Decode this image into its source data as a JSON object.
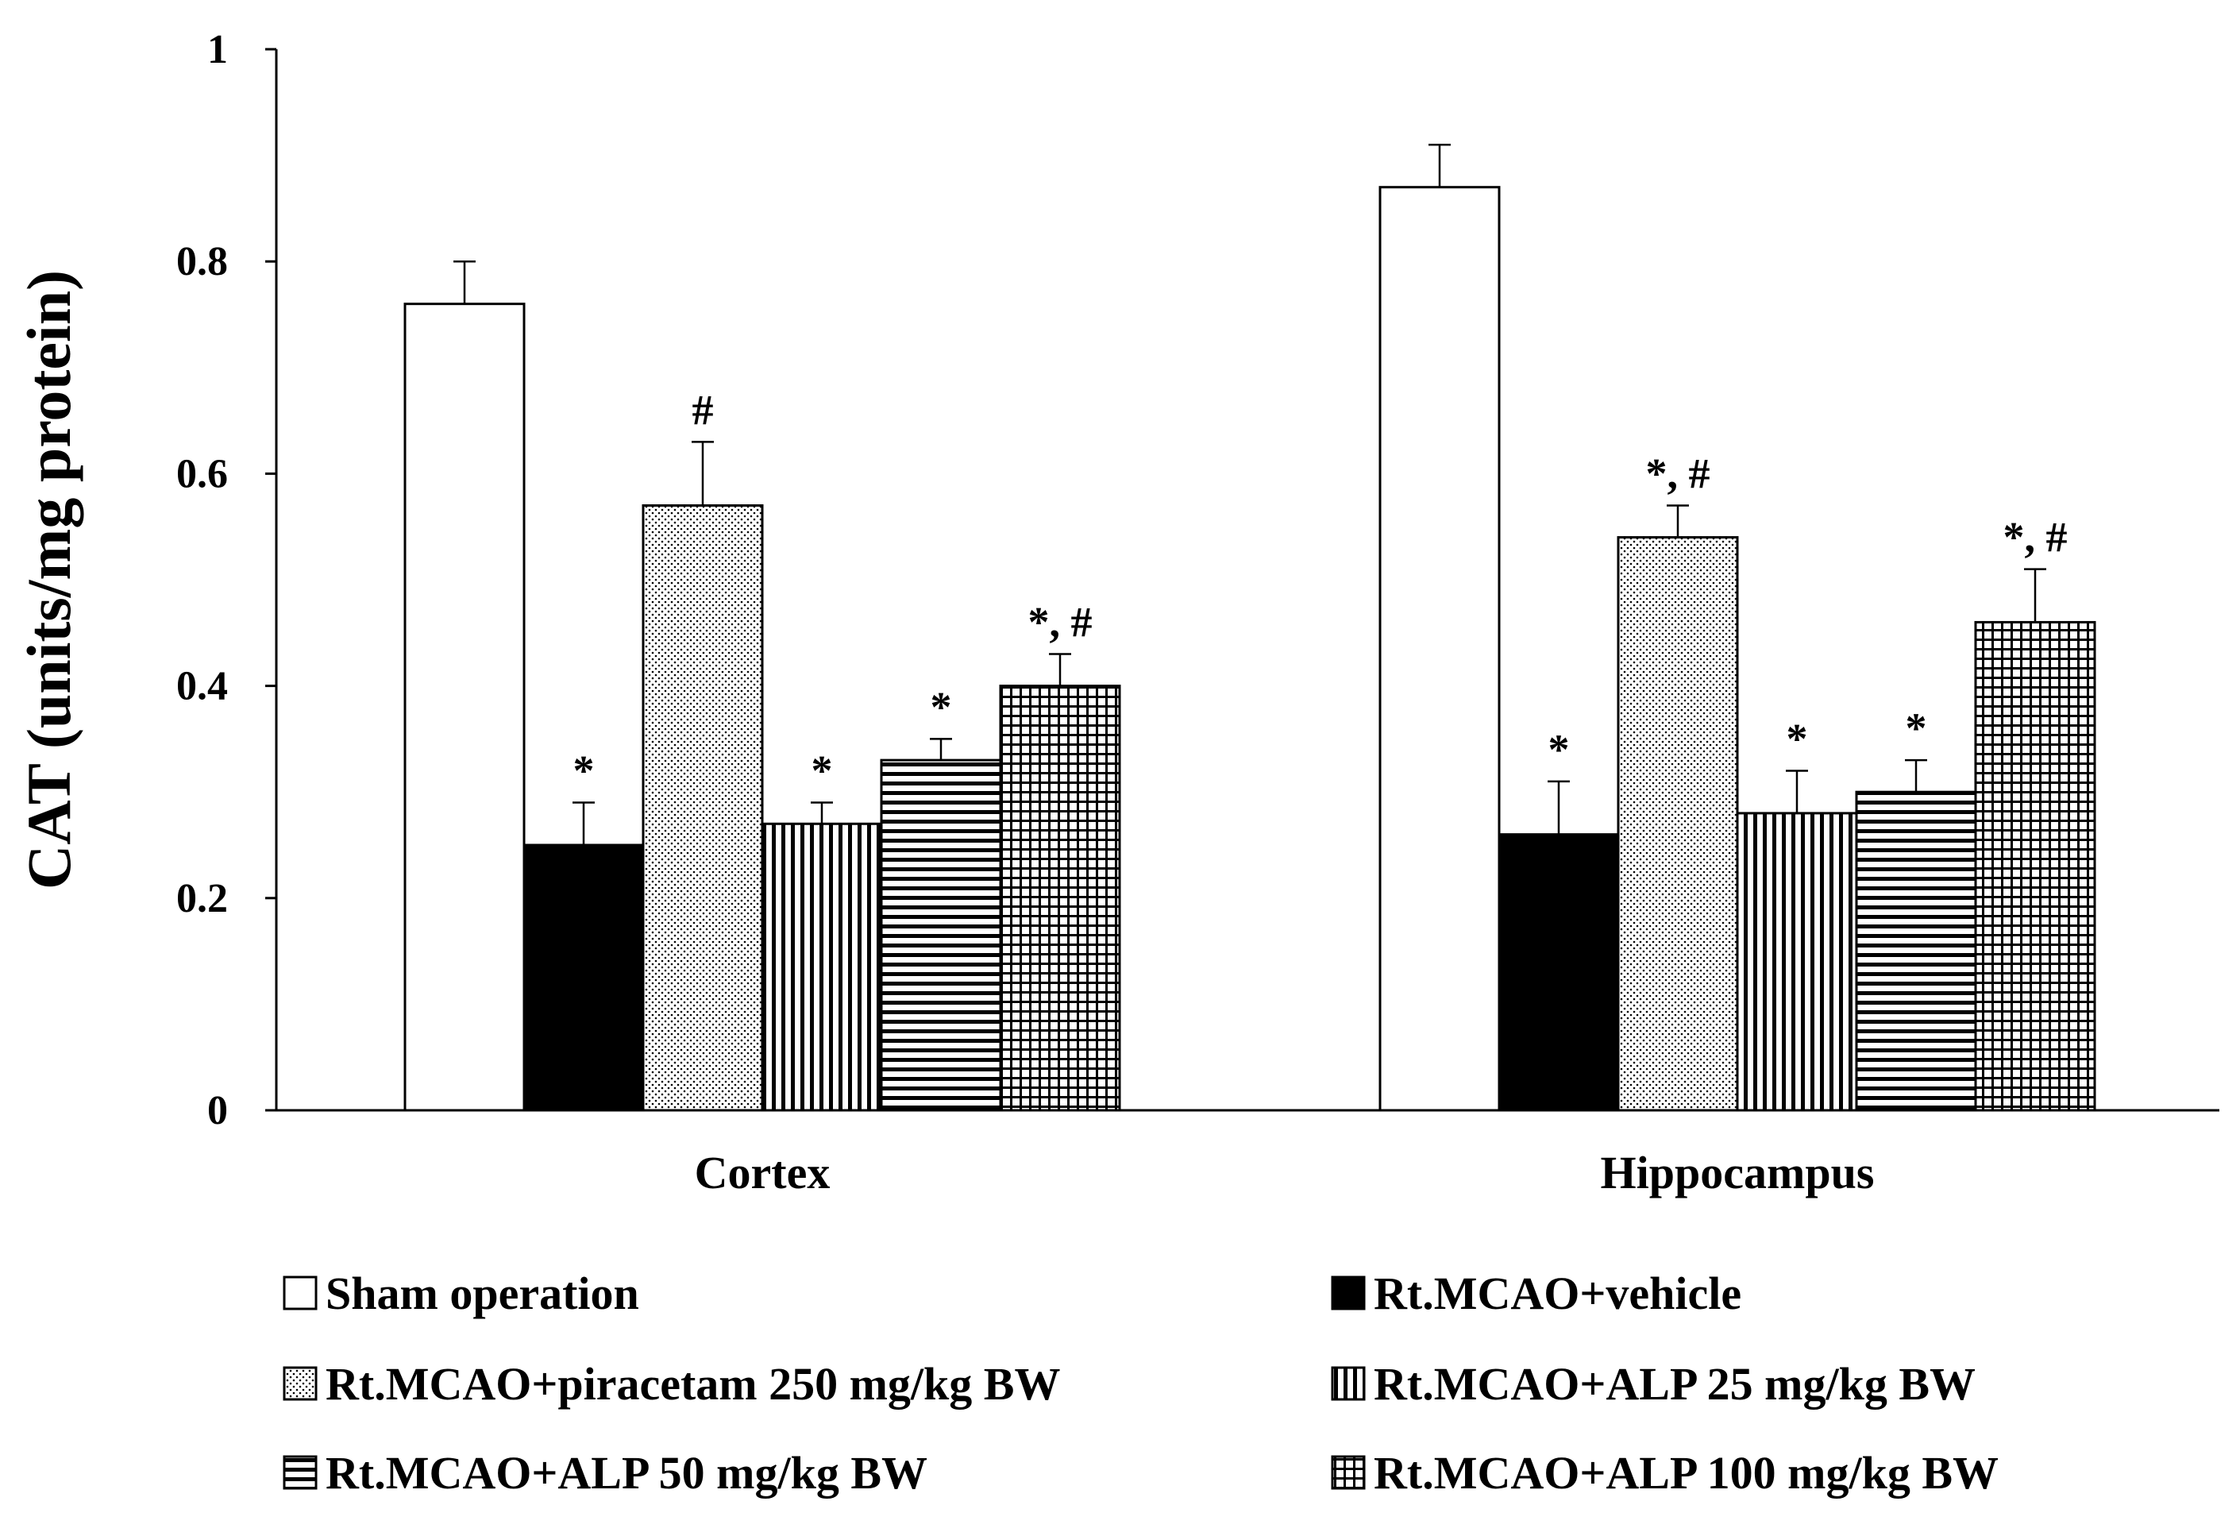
{
  "chart_data": {
    "type": "bar",
    "title": "",
    "xlabel": "",
    "ylabel": "CAT (units/mg protein)",
    "ylim": [
      0,
      1
    ],
    "yticks": [
      0,
      0.2,
      0.4,
      0.6,
      0.8,
      1
    ],
    "ytick_labels": [
      "0",
      "0.2",
      "0.4",
      "0.6",
      "0.8",
      "1"
    ],
    "categories": [
      "Cortex",
      "Hippocampus"
    ],
    "legend_position": "bottom",
    "series": [
      {
        "name": "Sham operation",
        "pattern": "solid-white",
        "values": [
          0.76,
          0.87
        ],
        "errors": [
          0.04,
          0.04
        ],
        "annotations": [
          "",
          ""
        ]
      },
      {
        "name": "Rt.MCAO+vehicle",
        "pattern": "solid-black",
        "values": [
          0.25,
          0.26
        ],
        "errors": [
          0.04,
          0.05
        ],
        "annotations": [
          "*",
          "*"
        ]
      },
      {
        "name": "Rt.MCAO+piracetam 250 mg/kg BW",
        "pattern": "dots",
        "values": [
          0.57,
          0.54
        ],
        "errors": [
          0.06,
          0.03
        ],
        "annotations": [
          "#",
          "*, #"
        ]
      },
      {
        "name": "Rt.MCAO+ALP 25 mg/kg BW",
        "pattern": "vertical-lines",
        "values": [
          0.27,
          0.28
        ],
        "errors": [
          0.02,
          0.04
        ],
        "annotations": [
          "*",
          "*"
        ]
      },
      {
        "name": "Rt.MCAO+ALP 50 mg/kg BW",
        "pattern": "horizontal-lines",
        "values": [
          0.33,
          0.3
        ],
        "errors": [
          0.02,
          0.03
        ],
        "annotations": [
          "*",
          "*"
        ]
      },
      {
        "name": "Rt.MCAO+ALP 100 mg/kg BW",
        "pattern": "grid",
        "values": [
          0.4,
          0.46
        ],
        "errors": [
          0.03,
          0.05
        ],
        "annotations": [
          "*, #",
          "*, #"
        ]
      }
    ]
  }
}
